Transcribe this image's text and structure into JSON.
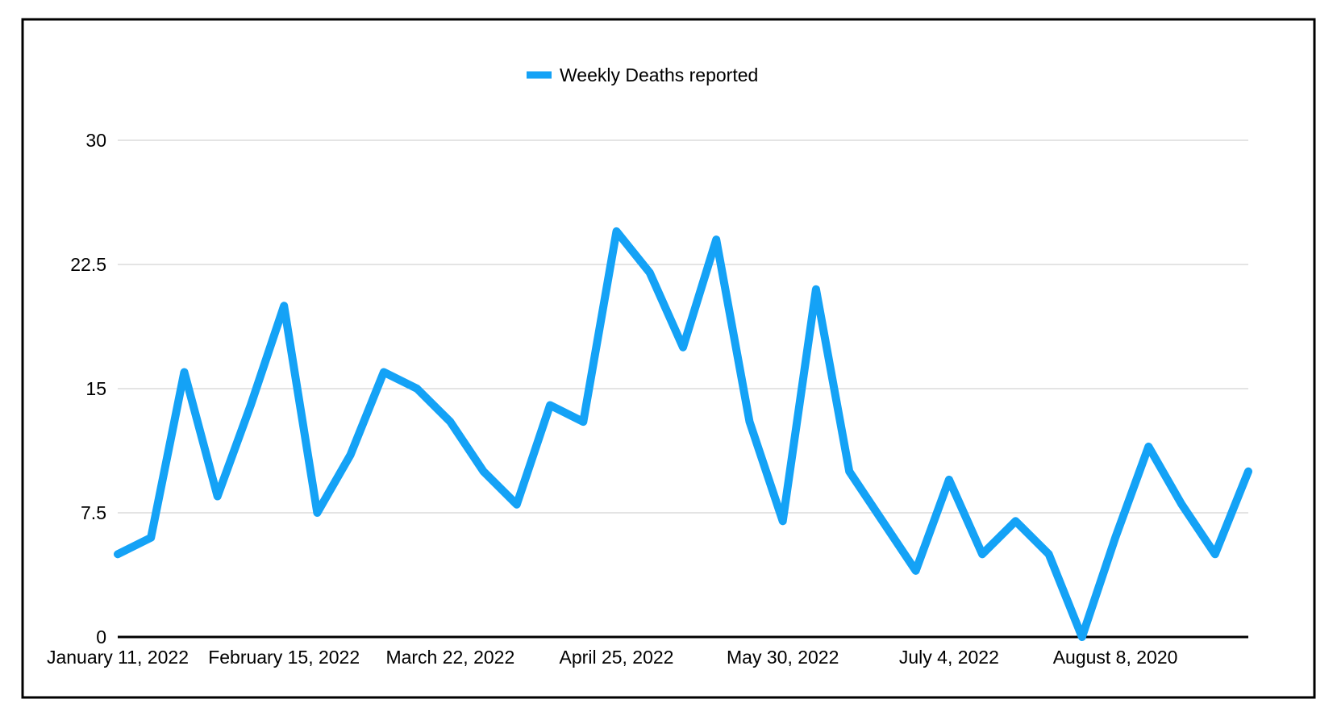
{
  "figure": {
    "background_color": "#FFFFFF",
    "frame_border_color": "#000000"
  },
  "legend": {
    "label": "Weekly Deaths reported",
    "marker_color": "#14A2F6",
    "position": "top-center"
  },
  "chart_data": {
    "type": "line",
    "title": "",
    "xlabel": "",
    "ylabel": "",
    "series": [
      {
        "name": "Weekly Deaths reported",
        "values": [
          5,
          6,
          16,
          8.5,
          14,
          20,
          7.5,
          11,
          16,
          15,
          13,
          10,
          8,
          14,
          13,
          24.5,
          22,
          17.5,
          24,
          13,
          7,
          21,
          10,
          7,
          4,
          9.5,
          5,
          7,
          5,
          0,
          6,
          11.5,
          8,
          5,
          10
        ]
      }
    ],
    "x_unit": "weeks starting January 11, 2022",
    "x_tick_labels": [
      "January 11, 2022",
      "February 15, 2022",
      "March 22, 2022",
      "April 25, 2022",
      "May 30, 2022",
      "July 4, 2022",
      "August 8, 2020"
    ],
    "x_tick_point_indices": [
      0,
      5,
      10,
      15,
      20,
      25,
      30
    ],
    "y_ticks": [
      0,
      7.5,
      15,
      22.5,
      30
    ],
    "ylim": [
      0,
      30
    ],
    "grid": "horizontal",
    "grid_color": "#C9C9C9",
    "axis_color": "#000000",
    "line_color": "#14A2F6",
    "line_width": 10,
    "legend_position": "top-center"
  }
}
